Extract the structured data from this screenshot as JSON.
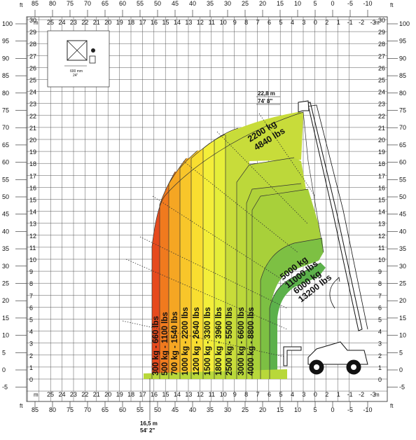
{
  "units": {
    "ft": "ft",
    "m": "m"
  },
  "ft_top": [
    "85",
    "80",
    "75",
    "70",
    "65",
    "60",
    "55",
    "50",
    "45",
    "40",
    "35",
    "30",
    "25",
    "20",
    "15",
    "10",
    "5",
    "0",
    "-5",
    "-10"
  ],
  "m_top": [
    "25",
    "24",
    "23",
    "22",
    "21",
    "20",
    "19",
    "18",
    "17",
    "16",
    "15",
    "14",
    "13",
    "12",
    "11",
    "10",
    "9",
    "8",
    "7",
    "6",
    "5",
    "4",
    "3",
    "0",
    "2",
    "1",
    "-1",
    "-2",
    "-3"
  ],
  "ft_left": [
    "100",
    "95",
    "90",
    "85",
    "80",
    "75",
    "70",
    "65",
    "60",
    "55",
    "50",
    "45",
    "40",
    "35",
    "30",
    "25",
    "20",
    "15",
    "10",
    "5",
    "0",
    "-5"
  ],
  "m_left": [
    "30",
    "29",
    "28",
    "27",
    "26",
    "25",
    "24",
    "23",
    "22",
    "21",
    "20",
    "19",
    "18",
    "17",
    "16",
    "15",
    "14",
    "13",
    "12",
    "11",
    "10",
    "9",
    "8",
    "7",
    "6",
    "5",
    "4",
    "3",
    "2",
    "1",
    "0",
    "-1"
  ],
  "load_bands": [
    {
      "label": "300 kg - 660 lbs",
      "color": "#e64a1e"
    },
    {
      "label": "500 kg - 1100 lbs",
      "color": "#f07a1e"
    },
    {
      "label": "700 kg - 1540 lbs",
      "color": "#f5a623"
    },
    {
      "label": "1000 kg - 2200 lbs",
      "color": "#f8c62a"
    },
    {
      "label": "1200 kg - 2640 lbs",
      "color": "#f9de30"
    },
    {
      "label": "1500 kg - 3300 lbs",
      "color": "#f4ee3a"
    },
    {
      "label": "1800 kg - 3960 lbs",
      "color": "#e6ee3a"
    },
    {
      "label": "2500 kg - 5500 lbs",
      "color": "#cce03a"
    },
    {
      "label": "3000 kg - 6600 lbs",
      "color": "#b6d43a"
    },
    {
      "label": "4000 kg - 8800 lbs",
      "color": "#9cc83a"
    }
  ],
  "top_load": {
    "line1": "2200 kg",
    "line2": "4840 lbs",
    "color": "#c8dc3a"
  },
  "mid_color": "#a8d03a",
  "inner_loads": [
    {
      "line1": "5000 kg",
      "line2": "11000 lbs",
      "color": "#7dc043"
    },
    {
      "line1": "6000 kg",
      "line2": "13200 lbs",
      "color": "#5cb14b"
    }
  ],
  "max_height": {
    "m": "22,8 m",
    "ft": "74' 8\""
  },
  "max_reach": {
    "m": "16,5 m",
    "ft": "54' 2\""
  },
  "inset": {
    "dim_mm": "600 mm",
    "dim_in": "24\""
  }
}
